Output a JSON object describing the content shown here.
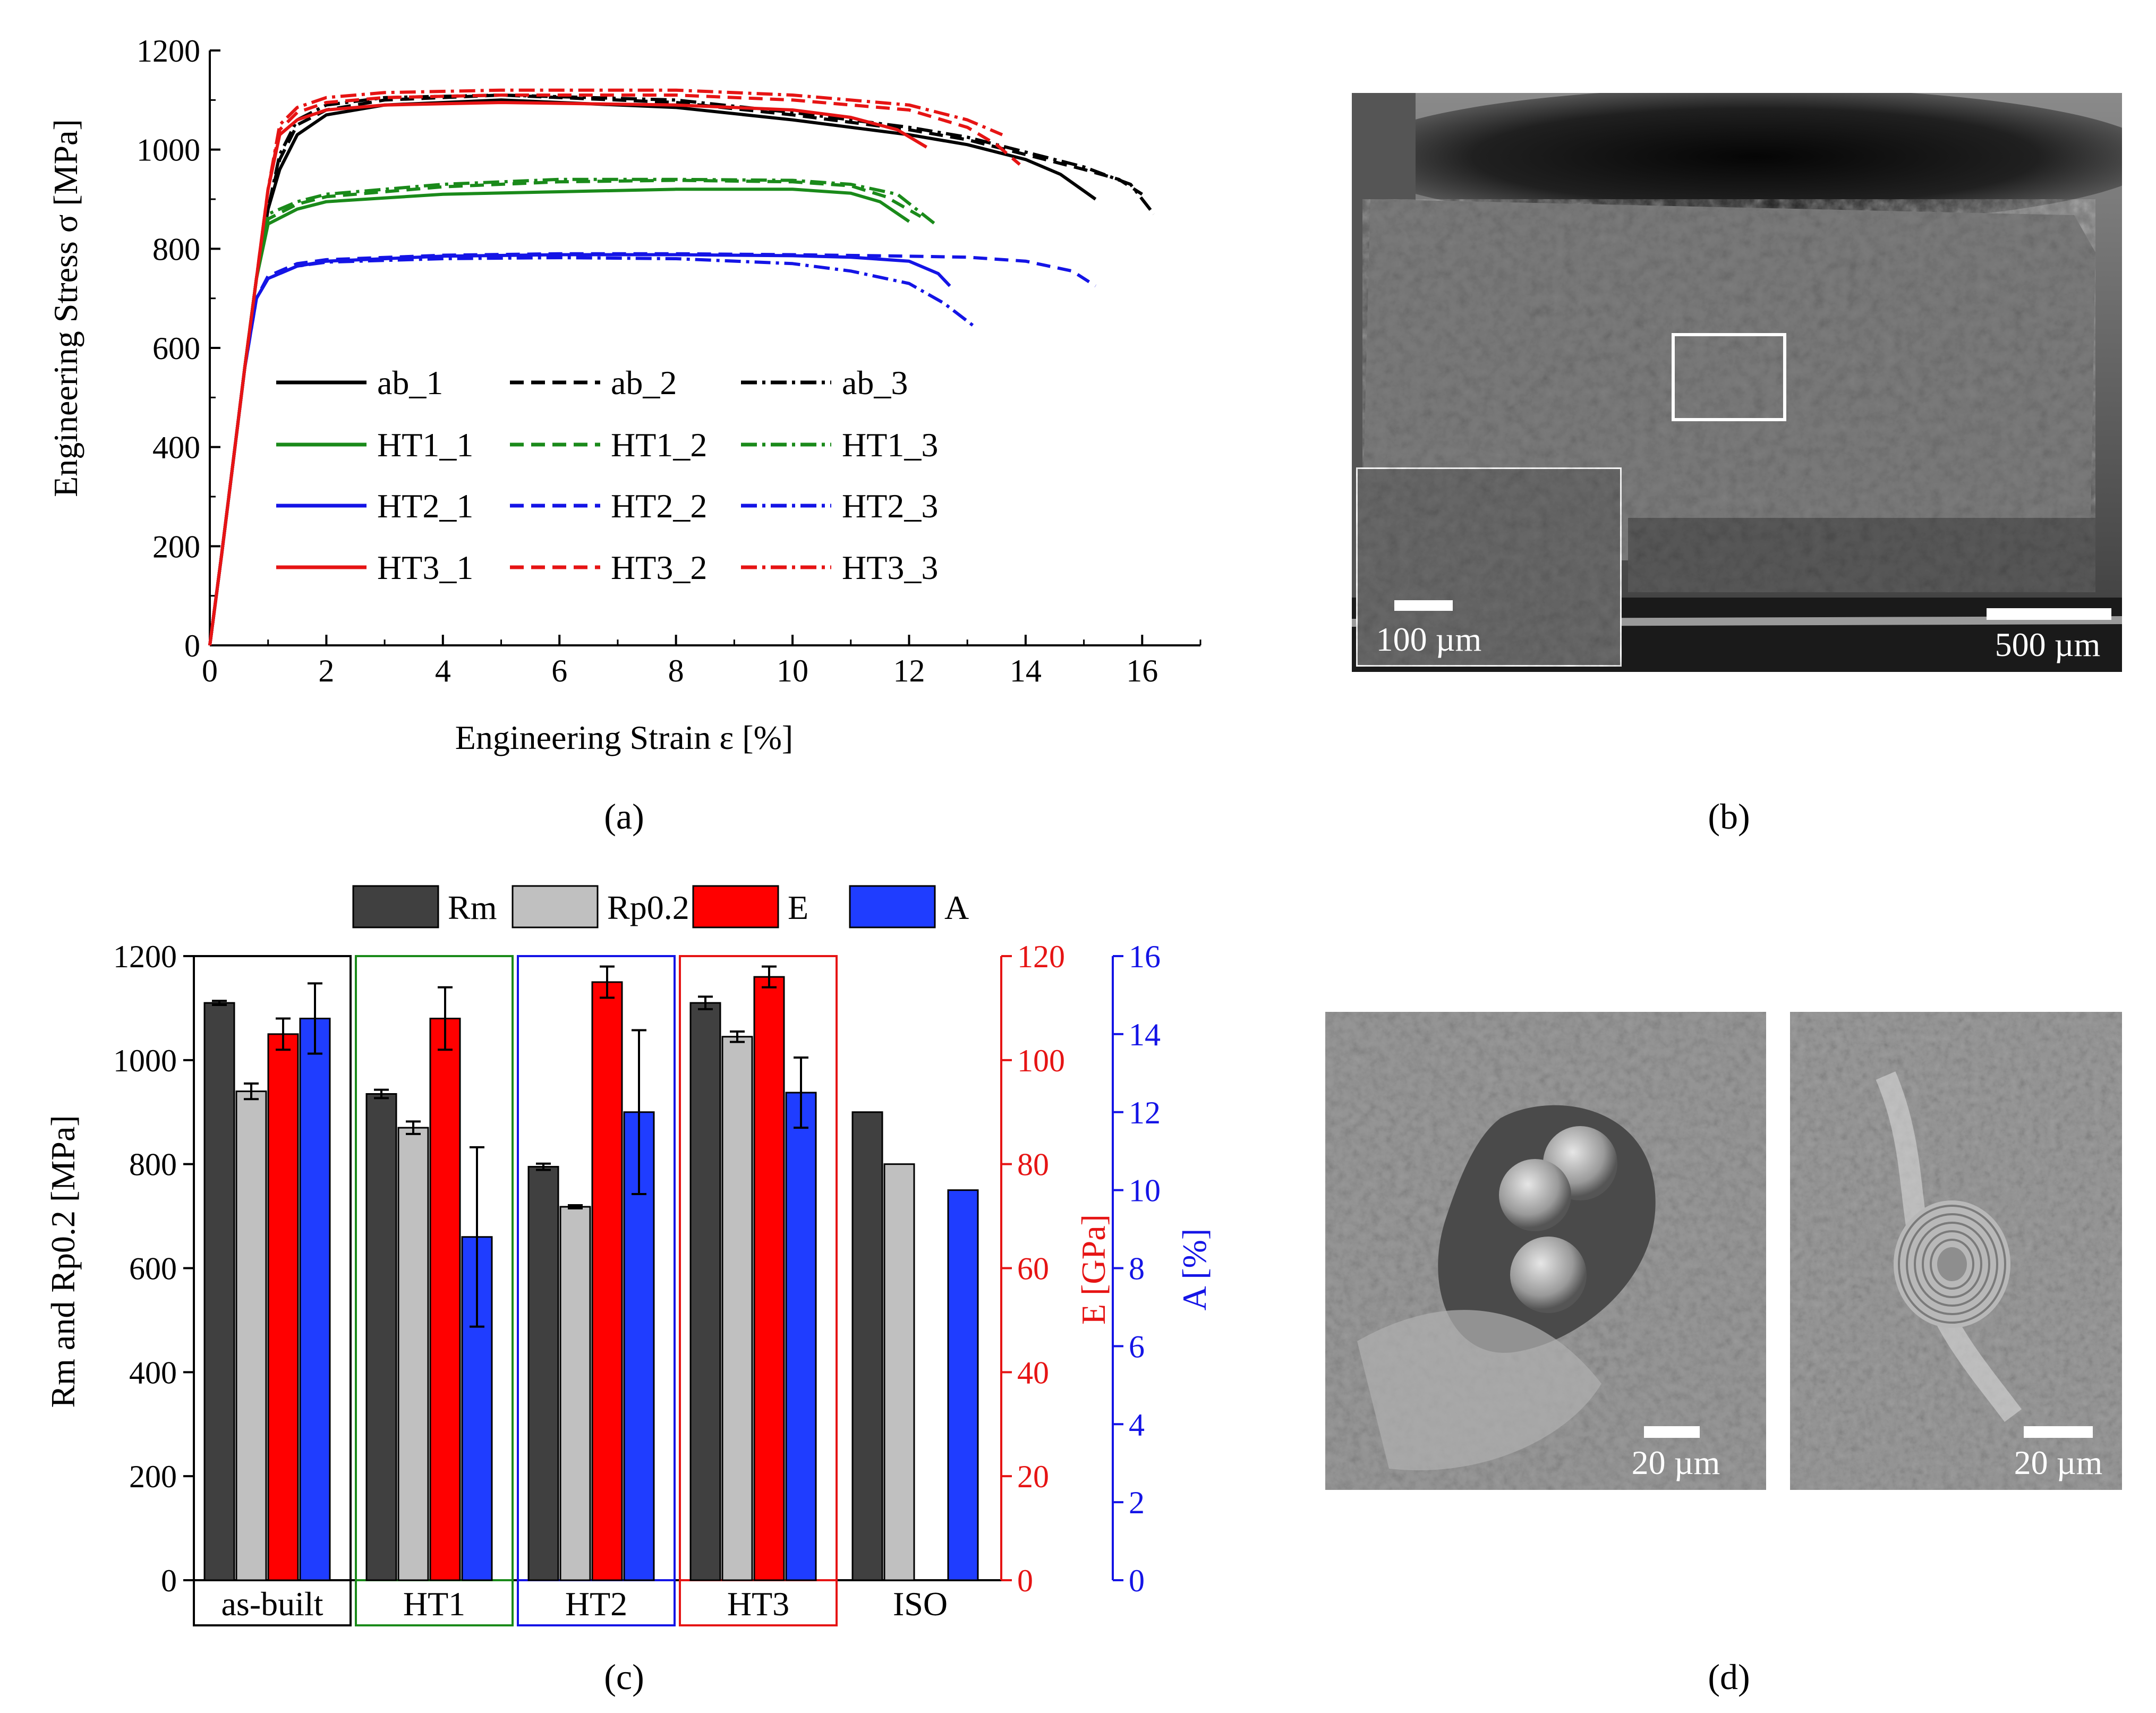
{
  "panel_labels": [
    "(a)",
    "(b)",
    "(c)",
    "(d)"
  ],
  "chart_data": [
    {
      "id": "a",
      "type": "line",
      "xlabel": "Engineering Strain ε [%]",
      "ylabel": "Engineering Stress σ [MPa]",
      "xlim": [
        0,
        17
      ],
      "ylim": [
        0,
        1200
      ],
      "xticks": [
        0,
        2,
        4,
        6,
        8,
        10,
        12,
        14,
        16
      ],
      "yticks": [
        0,
        200,
        400,
        600,
        800,
        1000,
        1200
      ],
      "series": [
        {
          "name": "ab_1",
          "color": "#000000",
          "dash": "solid",
          "x": [
            0,
            0.2,
            0.4,
            0.6,
            0.8,
            1.0,
            1.2,
            1.5,
            2,
            3,
            5,
            8,
            10,
            12,
            13,
            14,
            14.6,
            15.2
          ],
          "y": [
            0,
            180,
            370,
            560,
            740,
            880,
            960,
            1030,
            1070,
            1090,
            1100,
            1085,
            1060,
            1030,
            1010,
            980,
            950,
            900
          ]
        },
        {
          "name": "ab_2",
          "color": "#000000",
          "dash": "dash",
          "x": [
            0,
            0.2,
            0.4,
            0.6,
            0.8,
            1.0,
            1.2,
            1.5,
            2,
            3,
            5,
            8,
            10,
            12,
            13,
            14,
            15,
            15.6,
            16
          ],
          "y": [
            0,
            180,
            370,
            560,
            740,
            880,
            980,
            1050,
            1080,
            1100,
            1110,
            1095,
            1070,
            1040,
            1020,
            990,
            960,
            940,
            910
          ]
        },
        {
          "name": "ab_3",
          "color": "#000000",
          "dash": "dashdot",
          "x": [
            0,
            0.2,
            0.4,
            0.6,
            0.8,
            1.0,
            1.2,
            1.5,
            2,
            3,
            5,
            8,
            10,
            12,
            13,
            14,
            15,
            15.8,
            16.2
          ],
          "y": [
            0,
            180,
            370,
            560,
            740,
            880,
            990,
            1060,
            1090,
            1105,
            1110,
            1100,
            1075,
            1045,
            1025,
            995,
            965,
            930,
            870
          ]
        },
        {
          "name": "HT1_1",
          "color": "#1a8a1a",
          "dash": "solid",
          "x": [
            0,
            0.2,
            0.4,
            0.6,
            0.8,
            1.0,
            1.5,
            2,
            4,
            6,
            8,
            10,
            11,
            11.5,
            12
          ],
          "y": [
            0,
            180,
            370,
            560,
            740,
            850,
            880,
            895,
            910,
            915,
            920,
            920,
            912,
            895,
            855
          ]
        },
        {
          "name": "HT1_2",
          "color": "#1a8a1a",
          "dash": "dash",
          "x": [
            0,
            0.2,
            0.4,
            0.6,
            0.8,
            1.0,
            1.5,
            2,
            4,
            6,
            8,
            10,
            11,
            11.6,
            12.2
          ],
          "y": [
            0,
            180,
            370,
            560,
            740,
            860,
            890,
            905,
            925,
            935,
            938,
            935,
            927,
            905,
            865
          ]
        },
        {
          "name": "HT1_3",
          "color": "#1a8a1a",
          "dash": "dashdot",
          "x": [
            0,
            0.2,
            0.4,
            0.6,
            0.8,
            1.0,
            1.5,
            2,
            4,
            6,
            8,
            10,
            11,
            11.8,
            12.5
          ],
          "y": [
            0,
            180,
            370,
            560,
            740,
            870,
            895,
            910,
            930,
            940,
            940,
            938,
            930,
            910,
            845
          ]
        },
        {
          "name": "HT2_1",
          "color": "#1414e6",
          "dash": "solid",
          "x": [
            0,
            0.2,
            0.4,
            0.6,
            0.8,
            1.0,
            1.5,
            2,
            4,
            6,
            8,
            10,
            11,
            12,
            12.5,
            12.7
          ],
          "y": [
            0,
            180,
            370,
            560,
            700,
            740,
            765,
            775,
            785,
            788,
            788,
            786,
            783,
            775,
            750,
            725
          ]
        },
        {
          "name": "HT2_2",
          "color": "#1414e6",
          "dash": "dash",
          "x": [
            0,
            0.2,
            0.4,
            0.6,
            0.8,
            1.0,
            1.5,
            2,
            4,
            6,
            8,
            10,
            12,
            13,
            14,
            14.8,
            15.2
          ],
          "y": [
            0,
            180,
            370,
            560,
            700,
            745,
            770,
            778,
            787,
            790,
            790,
            788,
            785,
            783,
            775,
            755,
            725
          ]
        },
        {
          "name": "HT2_3",
          "color": "#1414e6",
          "dash": "dashdot",
          "x": [
            0,
            0.2,
            0.4,
            0.6,
            0.8,
            1.0,
            1.5,
            2,
            4,
            6,
            8,
            10,
            11,
            12,
            12.6,
            13.1
          ],
          "y": [
            0,
            180,
            370,
            560,
            700,
            740,
            765,
            773,
            780,
            782,
            780,
            770,
            755,
            730,
            690,
            645
          ]
        },
        {
          "name": "HT3_1",
          "color": "#e61414",
          "dash": "solid",
          "x": [
            0,
            0.2,
            0.4,
            0.6,
            0.8,
            1.0,
            1.2,
            1.5,
            2,
            3,
            5,
            8,
            10,
            11,
            11.8,
            12.3
          ],
          "y": [
            0,
            180,
            370,
            560,
            740,
            920,
            1030,
            1060,
            1080,
            1090,
            1095,
            1090,
            1080,
            1065,
            1040,
            1005
          ]
        },
        {
          "name": "HT3_2",
          "color": "#e61414",
          "dash": "dash",
          "x": [
            0,
            0.2,
            0.4,
            0.6,
            0.8,
            1.0,
            1.2,
            1.5,
            2,
            3,
            5,
            8,
            10,
            12,
            13,
            13.5,
            13.9
          ],
          "y": [
            0,
            180,
            370,
            560,
            740,
            920,
            1040,
            1075,
            1095,
            1105,
            1110,
            1110,
            1100,
            1080,
            1045,
            1010,
            970
          ]
        },
        {
          "name": "HT3_3",
          "color": "#e61414",
          "dash": "dashdot",
          "x": [
            0,
            0.2,
            0.4,
            0.6,
            0.8,
            1.0,
            1.2,
            1.5,
            2,
            3,
            5,
            8,
            10,
            12,
            13,
            13.6
          ],
          "y": [
            0,
            180,
            370,
            560,
            740,
            920,
            1050,
            1085,
            1105,
            1115,
            1120,
            1120,
            1110,
            1090,
            1060,
            1030
          ]
        }
      ]
    },
    {
      "id": "c",
      "type": "bar",
      "categories": [
        "as-built",
        "HT1",
        "HT2",
        "HT3",
        "ISO"
      ],
      "group_frame_colors": [
        "#000000",
        "#1a8a1a",
        "#1414e6",
        "#e61414",
        "none"
      ],
      "ylabel_left": "Rm and Rp0.2 [MPa]",
      "ylabel_E": "E [GPa]",
      "ylabel_A": "A [%]",
      "ylim_left": [
        0,
        1200
      ],
      "ylim_E": [
        0,
        120
      ],
      "ylim_A": [
        0,
        16
      ],
      "yticks_left": [
        0,
        200,
        400,
        600,
        800,
        1000,
        1200
      ],
      "yticks_E": [
        0,
        20,
        40,
        60,
        80,
        100,
        120
      ],
      "yticks_A": [
        0,
        2,
        4,
        6,
        8,
        10,
        12,
        14,
        16
      ],
      "series": [
        {
          "name": "Rm",
          "axis": "left",
          "color": "#404040",
          "values": [
            1110,
            935,
            795,
            1110,
            900
          ],
          "errors": [
            4,
            8,
            6,
            12,
            null
          ]
        },
        {
          "name": "Rp0.2",
          "axis": "left",
          "color": "#c0c0c0",
          "values": [
            940,
            870,
            718,
            1045,
            800
          ],
          "errors": [
            15,
            12,
            3,
            10,
            null
          ]
        },
        {
          "name": "E",
          "axis": "E",
          "color": "#ff0000",
          "values": [
            105,
            108,
            115,
            116,
            null
          ],
          "errors": [
            3,
            6,
            3,
            2,
            null
          ]
        },
        {
          "name": "A",
          "axis": "A",
          "color": "#1f3dff",
          "values": [
            14.4,
            8.8,
            12.0,
            12.5,
            10.0
          ],
          "errors": [
            0.9,
            2.3,
            2.1,
            0.9,
            null
          ]
        }
      ]
    }
  ],
  "panel_b": {
    "scale_bar_main": "500 µm",
    "scale_bar_inset": "100 µm"
  },
  "panel_d": {
    "scale_bar_left": "20 µm",
    "scale_bar_right": "20 µm"
  }
}
